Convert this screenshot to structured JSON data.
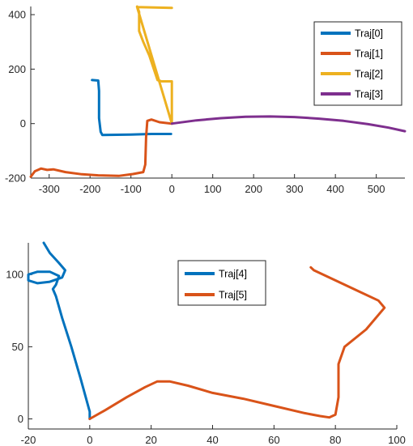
{
  "chart_data": [
    {
      "type": "line",
      "xlim": [
        -345,
        570
      ],
      "ylim": [
        -200,
        430
      ],
      "x_ticks": [
        -300,
        -200,
        -100,
        0,
        100,
        200,
        300,
        400,
        500
      ],
      "x_tick_labels": [
        "-300",
        "-200",
        "-100",
        "0",
        "100",
        "200",
        "300",
        "400",
        "500"
      ],
      "y_ticks": [
        -200,
        0,
        200,
        400
      ],
      "y_tick_labels": [
        "-200",
        "0",
        "200",
        "400"
      ],
      "grid": false,
      "legend_position": "top-right",
      "series": [
        {
          "name": "Traj[0]",
          "color": "#0072BD",
          "points": [
            [
              -195,
              160
            ],
            [
              -180,
              158
            ],
            [
              -178,
              120
            ],
            [
              -178,
              20
            ],
            [
              -174,
              -30
            ],
            [
              -170,
              -42
            ],
            [
              -100,
              -40
            ],
            [
              -50,
              -38
            ],
            [
              -2,
              -38
            ]
          ]
        },
        {
          "name": "Traj[1]",
          "color": "#D95319",
          "points": [
            [
              -345,
              -195
            ],
            [
              -335,
              -175
            ],
            [
              -320,
              -165
            ],
            [
              -305,
              -170
            ],
            [
              -290,
              -168
            ],
            [
              -260,
              -178
            ],
            [
              -220,
              -186
            ],
            [
              -180,
              -190
            ],
            [
              -130,
              -192
            ],
            [
              -95,
              -185
            ],
            [
              -70,
              -178
            ],
            [
              -65,
              -150
            ],
            [
              -63,
              -50
            ],
            [
              -60,
              10
            ],
            [
              -50,
              15
            ],
            [
              -30,
              5
            ],
            [
              0,
              0
            ]
          ]
        },
        {
          "name": "Traj[2]",
          "color": "#EDB120",
          "points": [
            [
              -85,
              430
            ],
            [
              -80,
              410
            ],
            [
              -80,
              340
            ],
            [
              -70,
              300
            ],
            [
              -55,
              250
            ],
            [
              -35,
              160
            ],
            [
              -25,
              155
            ],
            [
              0,
              155
            ],
            [
              0,
              0
            ],
            [
              -85,
              428
            ],
            [
              0,
              425
            ]
          ]
        },
        {
          "name": "Traj[3]",
          "color": "#7E2F8E",
          "points": [
            [
              0,
              0
            ],
            [
              60,
              12
            ],
            [
              120,
              20
            ],
            [
              180,
              25
            ],
            [
              240,
              26
            ],
            [
              300,
              24
            ],
            [
              360,
              18
            ],
            [
              420,
              10
            ],
            [
              480,
              -2
            ],
            [
              530,
              -15
            ],
            [
              570,
              -28
            ]
          ]
        }
      ]
    },
    {
      "type": "line",
      "xlim": [
        -20,
        100
      ],
      "ylim": [
        -7,
        122
      ],
      "x_ticks": [
        -20,
        0,
        20,
        40,
        60,
        80,
        100
      ],
      "x_tick_labels": [
        "-20",
        "0",
        "20",
        "40",
        "60",
        "80",
        "100"
      ],
      "y_ticks": [
        0,
        50,
        100
      ],
      "y_tick_labels": [
        "0",
        "50",
        "100"
      ],
      "grid": false,
      "legend_position": "top-center",
      "series": [
        {
          "name": "Traj[4]",
          "color": "#0072BD",
          "points": [
            [
              -15,
              122
            ],
            [
              -13,
              115
            ],
            [
              -10,
              108
            ],
            [
              -8,
              103
            ],
            [
              -9,
              98
            ],
            [
              -13,
              95
            ],
            [
              -17,
              94
            ],
            [
              -20,
              96
            ],
            [
              -20,
              100
            ],
            [
              -17,
              102
            ],
            [
              -13,
              102
            ],
            [
              -10,
              99
            ],
            [
              -11,
              93
            ],
            [
              -12,
              90
            ],
            [
              -11,
              85
            ],
            [
              -9,
              70
            ],
            [
              -6,
              50
            ],
            [
              -3,
              28
            ],
            [
              0,
              5
            ],
            [
              0,
              0
            ]
          ]
        },
        {
          "name": "Traj[5]",
          "color": "#D95319",
          "points": [
            [
              0,
              0
            ],
            [
              5,
              6
            ],
            [
              12,
              15
            ],
            [
              18,
              22
            ],
            [
              22,
              26
            ],
            [
              26,
              26
            ],
            [
              32,
              23
            ],
            [
              40,
              18
            ],
            [
              50,
              14
            ],
            [
              60,
              9
            ],
            [
              70,
              4
            ],
            [
              75,
              2
            ],
            [
              78,
              1
            ],
            [
              80,
              3
            ],
            [
              81,
              15
            ],
            [
              81,
              38
            ],
            [
              83,
              50
            ],
            [
              90,
              62
            ],
            [
              96,
              77
            ],
            [
              94,
              82
            ],
            [
              88,
              88
            ],
            [
              80,
              96
            ],
            [
              73,
              103
            ],
            [
              72,
              105
            ]
          ]
        }
      ]
    }
  ],
  "legends": [
    {
      "entries": [
        "Traj[0]",
        "Traj[1]",
        "Traj[2]",
        "Traj[3]"
      ]
    },
    {
      "entries": [
        "Traj[4]",
        "Traj[5]"
      ]
    }
  ]
}
